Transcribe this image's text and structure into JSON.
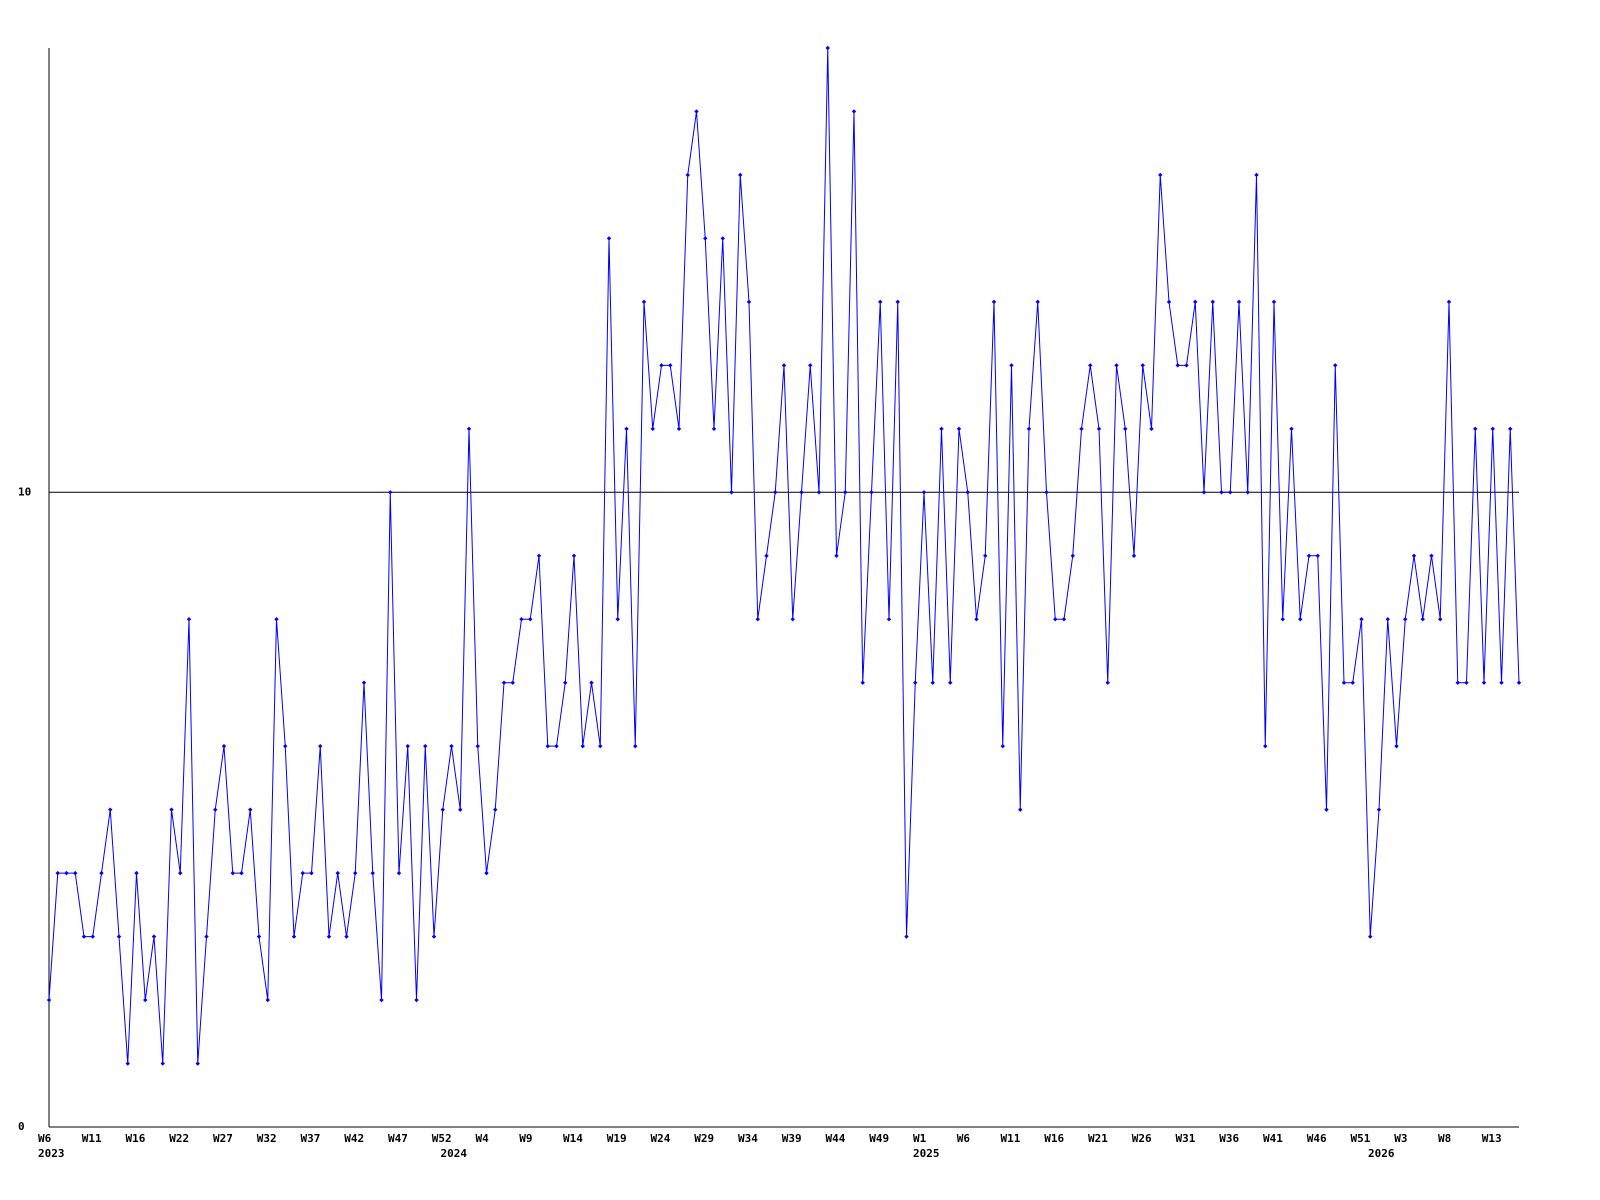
{
  "chart_data": {
    "type": "line",
    "color": "#0000ff",
    "ylim": [
      0,
      17
    ],
    "yticks": [
      0,
      10
    ],
    "grid": true,
    "categories": [
      "W6",
      null,
      null,
      null,
      null,
      "W11",
      null,
      null,
      null,
      null,
      "W16",
      null,
      null,
      null,
      null,
      "W22",
      null,
      null,
      null,
      null,
      "W27",
      null,
      null,
      null,
      null,
      "W32",
      null,
      null,
      null,
      null,
      "W37",
      null,
      null,
      null,
      null,
      "W42",
      null,
      null,
      null,
      null,
      "W47",
      null,
      null,
      null,
      null,
      "W52",
      null,
      null,
      null,
      null,
      "W4",
      null,
      null,
      null,
      null,
      "W9",
      null,
      null,
      null,
      null,
      "W14",
      null,
      null,
      null,
      null,
      "W19",
      null,
      null,
      null,
      null,
      "W24",
      null,
      null,
      null,
      null,
      "W29",
      null,
      null,
      null,
      null,
      "W34",
      null,
      null,
      null,
      null,
      "W39",
      null,
      null,
      null,
      null,
      "W44",
      null,
      null,
      null,
      null,
      "W49",
      null,
      null,
      null,
      null,
      "W1",
      null,
      null,
      null,
      null,
      "W6",
      null,
      null,
      null,
      null,
      "W11",
      null,
      null,
      null,
      null,
      "W16",
      null,
      null,
      null,
      null,
      "W21",
      null,
      null,
      null,
      null,
      "W26",
      null,
      null,
      null,
      null,
      "W31",
      null,
      null,
      null,
      null,
      "W36",
      null,
      null,
      null,
      null,
      "W41",
      null,
      null,
      null,
      null,
      "W46",
      null,
      null,
      null,
      null,
      "W51",
      null,
      null,
      null,
      null,
      "W3",
      null,
      null,
      null,
      null,
      "W8",
      null,
      null,
      null,
      null,
      "W13",
      null,
      null,
      null
    ],
    "category_years": [
      "2023",
      null,
      null,
      null,
      null,
      null,
      null,
      null,
      null,
      null,
      null,
      null,
      null,
      null,
      null,
      null,
      null,
      null,
      null,
      null,
      null,
      null,
      null,
      null,
      null,
      null,
      null,
      null,
      null,
      null,
      null,
      null,
      null,
      null,
      null,
      null,
      null,
      null,
      null,
      null,
      null,
      null,
      null,
      null,
      null,
      null,
      "2024",
      null,
      null,
      null,
      null,
      null,
      null,
      null,
      null,
      null,
      null,
      null,
      null,
      null,
      null,
      null,
      null,
      null,
      null,
      null,
      null,
      null,
      null,
      null,
      null,
      null,
      null,
      null,
      null,
      null,
      null,
      null,
      null,
      null,
      null,
      null,
      null,
      null,
      null,
      null,
      null,
      null,
      null,
      null,
      null,
      null,
      null,
      null,
      null,
      null,
      null,
      null,
      null,
      null,
      "2025",
      null,
      null,
      null,
      null,
      null,
      null,
      null,
      null,
      null,
      null,
      null,
      null,
      null,
      null,
      null,
      null,
      null,
      null,
      null,
      null,
      null,
      null,
      null,
      null,
      null,
      null,
      null,
      null,
      null,
      null,
      null,
      null,
      null,
      null,
      null,
      null,
      null,
      null,
      null,
      null,
      null,
      null,
      null,
      null,
      null,
      null,
      null,
      null,
      null,
      null,
      null,
      "2026",
      null,
      null,
      null,
      null,
      null,
      null,
      null,
      null,
      null,
      null,
      null,
      null,
      null,
      null,
      null,
      null
    ],
    "values": [
      2,
      4,
      4,
      4,
      3,
      3,
      4,
      5,
      3,
      1,
      4,
      2,
      3,
      1,
      5,
      4,
      8,
      1,
      3,
      5,
      6,
      4,
      4,
      5,
      3,
      2,
      8,
      6,
      3,
      4,
      4,
      6,
      3,
      4,
      3,
      4,
      7,
      4,
      2,
      10,
      4,
      6,
      2,
      6,
      3,
      5,
      6,
      5,
      11,
      6,
      4,
      5,
      7,
      7,
      8,
      8,
      9,
      6,
      6,
      7,
      9,
      6,
      7,
      6,
      14,
      8,
      11,
      6,
      13,
      11,
      12,
      12,
      11,
      15,
      16,
      14,
      11,
      14,
      10,
      15,
      13,
      8,
      9,
      10,
      12,
      8,
      10,
      12,
      10,
      17,
      9,
      10,
      16,
      7,
      10,
      13,
      8,
      13,
      3,
      7,
      10,
      7,
      11,
      7,
      11,
      10,
      8,
      9,
      13,
      6,
      12,
      5,
      11,
      13,
      10,
      8,
      8,
      9,
      11,
      12,
      11,
      7,
      12,
      11,
      9,
      12,
      11,
      15,
      13,
      12,
      12,
      13,
      10,
      13,
      10,
      10,
      13,
      10,
      15,
      6,
      13,
      8,
      11,
      8,
      9,
      9,
      5,
      12,
      7,
      7,
      8,
      3,
      5,
      8,
      6,
      8,
      9,
      8,
      9,
      8,
      13,
      7,
      7,
      11,
      7,
      11,
      7,
      11,
      7
    ]
  }
}
